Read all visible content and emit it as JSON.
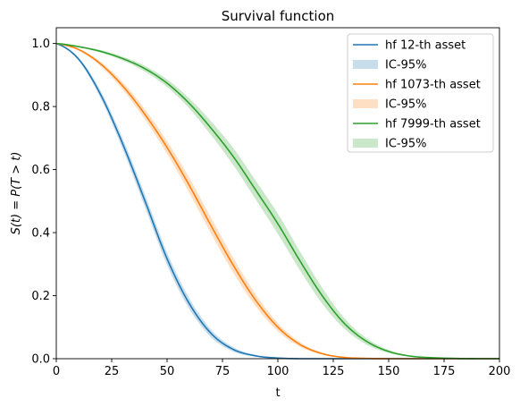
{
  "chart_data": {
    "type": "line",
    "title": "Survival function",
    "xlabel": "t",
    "ylabel": "S(t) = P(T > t)",
    "xlim": [
      0,
      200
    ],
    "ylim": [
      0,
      1.05
    ],
    "x_ticks": [
      0,
      25,
      50,
      75,
      100,
      125,
      150,
      175,
      200
    ],
    "x_tick_labels": [
      "0",
      "25",
      "50",
      "75",
      "100",
      "125",
      "150",
      "175",
      "200"
    ],
    "y_ticks": [
      0,
      0.2,
      0.4,
      0.6,
      0.8,
      1.0
    ],
    "y_tick_labels": [
      "0.0",
      "0.2",
      "0.4",
      "0.6",
      "0.8",
      "1.0"
    ],
    "grid": false,
    "legend_position": "top-right",
    "x": [
      0,
      10,
      20,
      30,
      40,
      50,
      60,
      70,
      80,
      90,
      100,
      110,
      120,
      130,
      140,
      150,
      160,
      170,
      180,
      190,
      200
    ],
    "series": [
      {
        "name": "hf 12-th asset",
        "band_name": "IC-95%",
        "color": "#1f77b4",
        "band_color": "#1f77b4",
        "values": [
          1.0,
          0.951,
          0.838,
          0.681,
          0.501,
          0.317,
          0.175,
          0.079,
          0.029,
          0.009,
          0.002,
          0.0,
          0.0,
          0.0,
          0.0,
          0.0,
          0.0,
          0.0,
          0.0,
          0.0,
          0.0
        ],
        "band_halfwidth": [
          0.0,
          0.005,
          0.012,
          0.017,
          0.02,
          0.02,
          0.017,
          0.012,
          0.007,
          0.003,
          0.001,
          0.0,
          0.0,
          0.0,
          0.0,
          0.0,
          0.0,
          0.0,
          0.0,
          0.0,
          0.0
        ]
      },
      {
        "name": "hf 1073-th asset",
        "band_name": "IC-95%",
        "color": "#ff7f0e",
        "band_color": "#ff7f0e",
        "values": [
          1.0,
          0.981,
          0.935,
          0.865,
          0.775,
          0.67,
          0.55,
          0.42,
          0.295,
          0.185,
          0.1,
          0.045,
          0.016,
          0.004,
          0.001,
          0.0,
          0.0,
          0.0,
          0.0,
          0.0,
          0.0
        ],
        "band_halfwidth": [
          0.0,
          0.003,
          0.007,
          0.012,
          0.016,
          0.02,
          0.024,
          0.025,
          0.024,
          0.019,
          0.013,
          0.007,
          0.003,
          0.001,
          0.0,
          0.0,
          0.0,
          0.0,
          0.0,
          0.0,
          0.0
        ]
      },
      {
        "name": "hf 7999-th asset",
        "band_name": "IC-95%",
        "color": "#2ca02c",
        "band_color": "#2ca02c",
        "values": [
          1.0,
          0.99,
          0.975,
          0.952,
          0.92,
          0.874,
          0.81,
          0.73,
          0.64,
          0.535,
          0.428,
          0.31,
          0.2,
          0.112,
          0.055,
          0.023,
          0.008,
          0.003,
          0.001,
          0.0,
          0.0
        ],
        "band_halfwidth": [
          0.0,
          0.002,
          0.004,
          0.006,
          0.009,
          0.012,
          0.016,
          0.022,
          0.027,
          0.03,
          0.032,
          0.03,
          0.025,
          0.017,
          0.01,
          0.005,
          0.002,
          0.001,
          0.0,
          0.0,
          0.0
        ]
      }
    ]
  }
}
